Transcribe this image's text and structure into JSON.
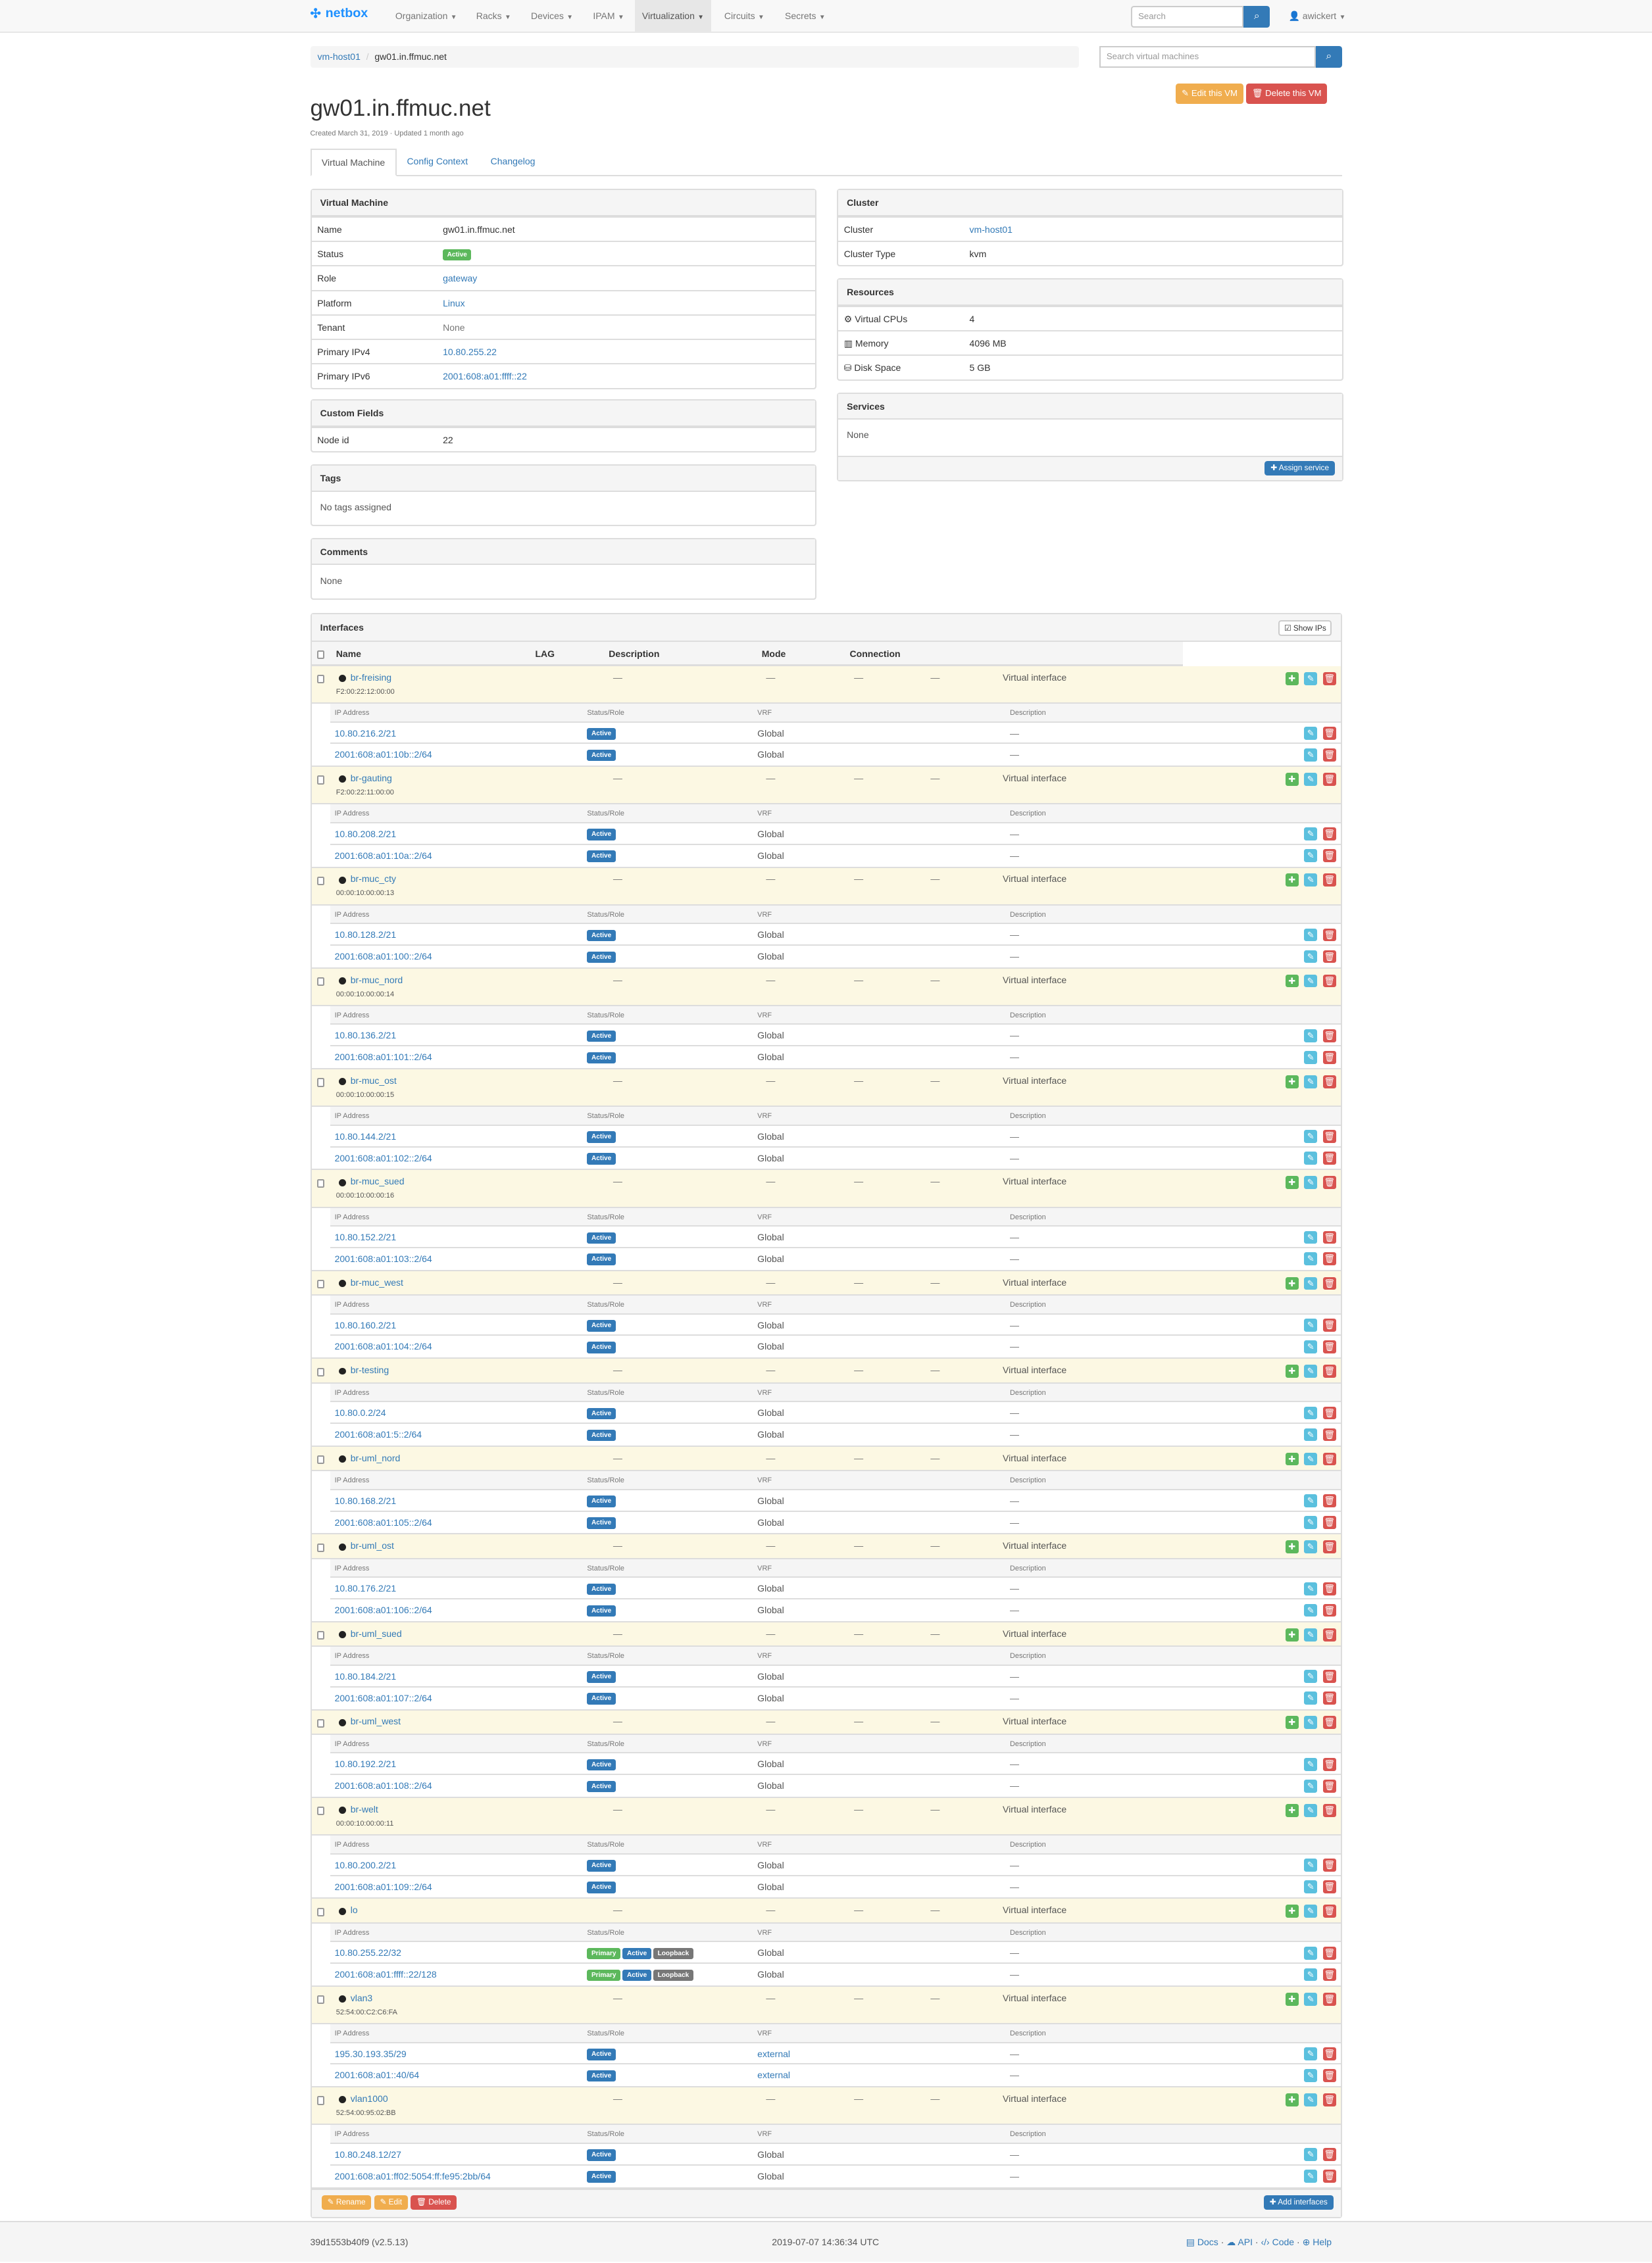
{
  "navbar": {
    "brand": "netbox",
    "items": [
      "Organization",
      "Racks",
      "Devices",
      "IPAM",
      "Virtualization",
      "Circuits",
      "Secrets"
    ],
    "active": "Virtualization",
    "search_placeholder": "Search",
    "user": "awickert"
  },
  "breadcrumb": [
    "vm-host01",
    "gw01.in.ffmuc.net"
  ],
  "vm_search_placeholder": "Search virtual machines",
  "actions": {
    "edit": "Edit this VM",
    "delete": "Delete this VM"
  },
  "title": "gw01.in.ffmuc.net",
  "created": "Created March 31, 2019 · Updated 1 month ago",
  "tabs": [
    "Virtual Machine",
    "Config Context",
    "Changelog"
  ],
  "vm_panel": {
    "title": "Virtual Machine",
    "rows": [
      {
        "label": "Name",
        "value": "gw01.in.ffmuc.net"
      },
      {
        "label": "Status",
        "value": "Active"
      },
      {
        "label": "Role",
        "value": "gateway"
      },
      {
        "label": "Platform",
        "value": "Linux"
      },
      {
        "label": "Tenant",
        "value": "None"
      },
      {
        "label": "Primary IPv4",
        "value": "10.80.255.22"
      },
      {
        "label": "Primary IPv6",
        "value": "2001:608:a01:ffff::22"
      }
    ]
  },
  "custom_fields": {
    "title": "Custom Fields",
    "label": "Node id",
    "value": "22"
  },
  "tags": {
    "title": "Tags",
    "value": "No tags assigned"
  },
  "comments": {
    "title": "Comments",
    "value": "None"
  },
  "cluster": {
    "title": "Cluster",
    "rows": [
      {
        "label": "Cluster",
        "value": "vm-host01"
      },
      {
        "label": "Cluster Type",
        "value": "kvm"
      }
    ]
  },
  "resources": {
    "title": "Resources",
    "rows": [
      {
        "label": "Virtual CPUs",
        "value": "4"
      },
      {
        "label": "Memory",
        "value": "4096 MB"
      },
      {
        "label": "Disk Space",
        "value": "5 GB"
      }
    ]
  },
  "services": {
    "title": "Services",
    "value": "None",
    "assign": "Assign service"
  },
  "interfaces": {
    "title": "Interfaces",
    "show_ips": "Show IPs",
    "columns": [
      "Name",
      "LAG",
      "Description",
      "Mode",
      "Connection"
    ],
    "ip_columns": [
      "IP Address",
      "Status/Role",
      "VRF",
      "Description"
    ],
    "dash": "—",
    "type": "Virtual interface",
    "items": [
      {
        "name": "br-freising",
        "mac": "F2:00:22:12:00:00",
        "ips": [
          {
            "addr": "10.80.216.2/21",
            "badges": [
              "Active"
            ],
            "vrf": "Global"
          },
          {
            "addr": "2001:608:a01:10b::2/64",
            "badges": [
              "Active"
            ],
            "vrf": "Global"
          }
        ]
      },
      {
        "name": "br-gauting",
        "mac": "F2:00:22:11:00:00",
        "ips": [
          {
            "addr": "10.80.208.2/21",
            "badges": [
              "Active"
            ],
            "vrf": "Global"
          },
          {
            "addr": "2001:608:a01:10a::2/64",
            "badges": [
              "Active"
            ],
            "vrf": "Global"
          }
        ]
      },
      {
        "name": "br-muc_cty",
        "mac": "00:00:10:00:00:13",
        "ips": [
          {
            "addr": "10.80.128.2/21",
            "badges": [
              "Active"
            ],
            "vrf": "Global"
          },
          {
            "addr": "2001:608:a01:100::2/64",
            "badges": [
              "Active"
            ],
            "vrf": "Global"
          }
        ]
      },
      {
        "name": "br-muc_nord",
        "mac": "00:00:10:00:00:14",
        "ips": [
          {
            "addr": "10.80.136.2/21",
            "badges": [
              "Active"
            ],
            "vrf": "Global"
          },
          {
            "addr": "2001:608:a01:101::2/64",
            "badges": [
              "Active"
            ],
            "vrf": "Global"
          }
        ]
      },
      {
        "name": "br-muc_ost",
        "mac": "00:00:10:00:00:15",
        "ips": [
          {
            "addr": "10.80.144.2/21",
            "badges": [
              "Active"
            ],
            "vrf": "Global"
          },
          {
            "addr": "2001:608:a01:102::2/64",
            "badges": [
              "Active"
            ],
            "vrf": "Global"
          }
        ]
      },
      {
        "name": "br-muc_sued",
        "mac": "00:00:10:00:00:16",
        "ips": [
          {
            "addr": "10.80.152.2/21",
            "badges": [
              "Active"
            ],
            "vrf": "Global"
          },
          {
            "addr": "2001:608:a01:103::2/64",
            "badges": [
              "Active"
            ],
            "vrf": "Global"
          }
        ]
      },
      {
        "name": "br-muc_west",
        "mac": "",
        "ips": [
          {
            "addr": "10.80.160.2/21",
            "badges": [
              "Active"
            ],
            "vrf": "Global"
          },
          {
            "addr": "2001:608:a01:104::2/64",
            "badges": [
              "Active"
            ],
            "vrf": "Global"
          }
        ]
      },
      {
        "name": "br-testing",
        "mac": "",
        "ips": [
          {
            "addr": "10.80.0.2/24",
            "badges": [
              "Active"
            ],
            "vrf": "Global"
          },
          {
            "addr": "2001:608:a01:5::2/64",
            "badges": [
              "Active"
            ],
            "vrf": "Global"
          }
        ]
      },
      {
        "name": "br-uml_nord",
        "mac": "",
        "ips": [
          {
            "addr": "10.80.168.2/21",
            "badges": [
              "Active"
            ],
            "vrf": "Global"
          },
          {
            "addr": "2001:608:a01:105::2/64",
            "badges": [
              "Active"
            ],
            "vrf": "Global"
          }
        ]
      },
      {
        "name": "br-uml_ost",
        "mac": "",
        "ips": [
          {
            "addr": "10.80.176.2/21",
            "badges": [
              "Active"
            ],
            "vrf": "Global"
          },
          {
            "addr": "2001:608:a01:106::2/64",
            "badges": [
              "Active"
            ],
            "vrf": "Global"
          }
        ]
      },
      {
        "name": "br-uml_sued",
        "mac": "",
        "ips": [
          {
            "addr": "10.80.184.2/21",
            "badges": [
              "Active"
            ],
            "vrf": "Global"
          },
          {
            "addr": "2001:608:a01:107::2/64",
            "badges": [
              "Active"
            ],
            "vrf": "Global"
          }
        ]
      },
      {
        "name": "br-uml_west",
        "mac": "",
        "ips": [
          {
            "addr": "10.80.192.2/21",
            "badges": [
              "Active"
            ],
            "vrf": "Global"
          },
          {
            "addr": "2001:608:a01:108::2/64",
            "badges": [
              "Active"
            ],
            "vrf": "Global"
          }
        ]
      },
      {
        "name": "br-welt",
        "mac": "00:00:10:00:00:11",
        "ips": [
          {
            "addr": "10.80.200.2/21",
            "badges": [
              "Active"
            ],
            "vrf": "Global"
          },
          {
            "addr": "2001:608:a01:109::2/64",
            "badges": [
              "Active"
            ],
            "vrf": "Global"
          }
        ]
      },
      {
        "name": "lo",
        "mac": "",
        "ips": [
          {
            "addr": "10.80.255.22/32",
            "badges": [
              "Primary",
              "Active",
              "Loopback"
            ],
            "vrf": "Global"
          },
          {
            "addr": "2001:608:a01:ffff::22/128",
            "badges": [
              "Primary",
              "Active",
              "Loopback"
            ],
            "vrf": "Global"
          }
        ]
      },
      {
        "name": "vlan3",
        "mac": "52:54:00:C2:C6:FA",
        "ips": [
          {
            "addr": "195.30.193.35/29",
            "badges": [
              "Active"
            ],
            "vrf": "external",
            "vrf_link": true
          },
          {
            "addr": "2001:608:a01::40/64",
            "badges": [
              "Active"
            ],
            "vrf": "external",
            "vrf_link": true
          }
        ]
      },
      {
        "name": "vlan1000",
        "mac": "52:54:00:95:02:BB",
        "ips": [
          {
            "addr": "10.80.248.12/27",
            "badges": [
              "Active"
            ],
            "vrf": "Global"
          },
          {
            "addr": "2001:608:a01:ff02:5054:ff:fe95:2bb/64",
            "badges": [
              "Active"
            ],
            "vrf": "Global"
          }
        ]
      }
    ],
    "footer": {
      "rename": "Rename",
      "edit": "Edit",
      "delete": "Delete",
      "add": "Add interfaces"
    }
  },
  "badge_colors": {
    "Active": "#337ab7",
    "Primary": "#5cb85c",
    "Loopback": "#777777",
    "vm_status": "#5cb85c"
  },
  "footer": {
    "version": "39d1553b40f9 (v2.5.13)",
    "time": "2019-07-07 14:36:34 UTC",
    "links": [
      "Docs",
      "API",
      "Code",
      "Help"
    ]
  }
}
